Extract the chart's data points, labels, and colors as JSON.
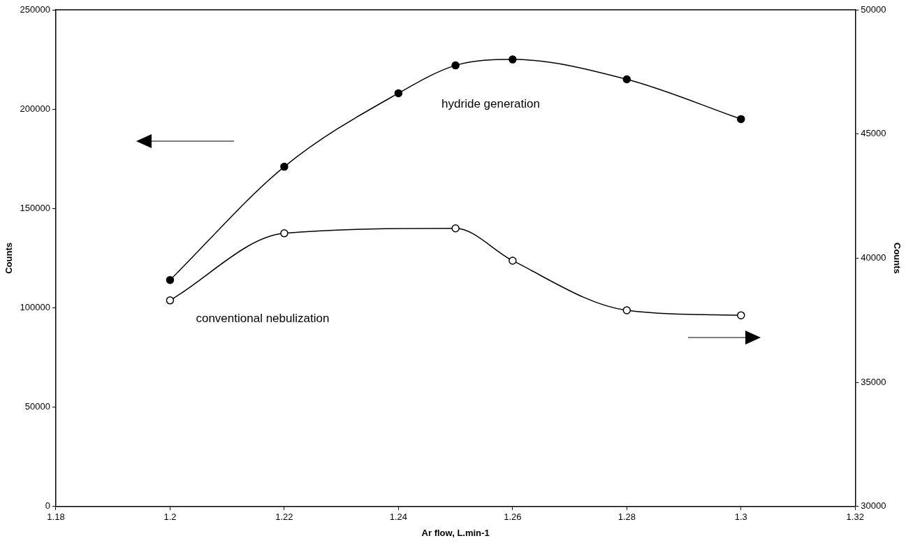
{
  "chart_data": {
    "type": "line",
    "xlabel": "Ar flow, L.min-1",
    "ylabel": "Counts",
    "y2label": "Counts",
    "series": [
      {
        "name": "hydride generation",
        "color": "#000000",
        "x": [
          1.2,
          1.22,
          1.24,
          1.25,
          1.26,
          1.28,
          1.3
        ],
        "values": [
          114000,
          171000,
          208000,
          222000,
          225000,
          215000,
          195000
        ]
      },
      {
        "name": "conventional nebulization",
        "color": "#000000",
        "axis": "y2",
        "x": [
          1.2,
          1.22,
          1.25,
          1.26,
          1.28,
          1.3
        ],
        "values": [
          38300,
          41000,
          41200,
          39900,
          37900,
          37700
        ]
      }
    ],
    "xlim": [
      1.18,
      1.32
    ],
    "xticks": [
      1.18,
      1.2,
      1.22,
      1.24,
      1.26,
      1.28,
      1.3,
      1.32
    ],
    "ylim": [
      0,
      250000
    ],
    "yticks": [
      0,
      50000,
      100000,
      150000,
      200000,
      250000
    ],
    "y2lim": [
      30000,
      50000
    ],
    "y2ticks": [
      30000,
      35000,
      40000,
      45000,
      50000
    ],
    "grid": false,
    "legend": false,
    "marker": "circle",
    "line_style": "solid"
  }
}
